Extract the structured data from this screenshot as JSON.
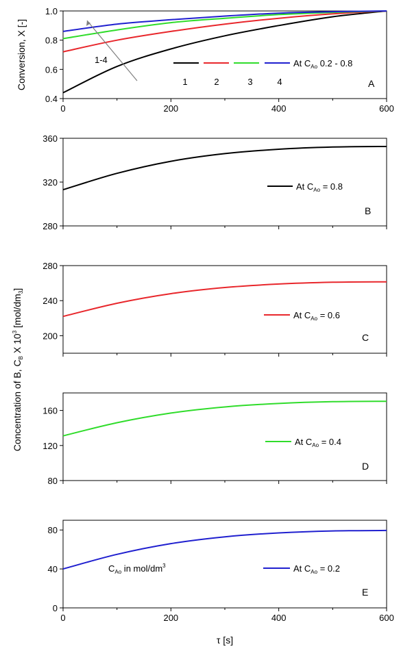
{
  "figure": {
    "ylabel_top": "Conversion, X [-]",
    "ylabel_bottom_main": "Concentration of B, C",
    "ylabel_bottom_sub": "B",
    "ylabel_bottom_tail": " X 10",
    "ylabel_bottom_sup": "3",
    "ylabel_bottom_unit": " [mol/dm",
    "ylabel_bottom_unit_sub": "3",
    "ylabel_bottom_end": "]",
    "xlabel": "τ [s]",
    "note_main": "C",
    "note_sub": "Ao",
    "note_tail": " in mol/dm",
    "note_sup": "3"
  },
  "chart_data": [
    {
      "panel": "A",
      "type": "line",
      "xlim": [
        0,
        600
      ],
      "ylim": [
        0.4,
        1.0
      ],
      "xticks": [
        "0",
        "200",
        "400",
        "600"
      ],
      "yticks": [
        "0.4",
        "0.6",
        "0.8",
        "1.0"
      ],
      "legend": {
        "prefix": "At C",
        "prefix_sub": "Ao",
        "suffix": " 0.2 - 0.8",
        "numbers": [
          "1",
          "2",
          "3",
          "4"
        ]
      },
      "arrow_label": "1-4",
      "series": [
        {
          "name": "1",
          "color": "#000000",
          "x": [
            0,
            100,
            200,
            300,
            400,
            500,
            600
          ],
          "y": [
            0.44,
            0.62,
            0.74,
            0.83,
            0.9,
            0.96,
            1.0
          ]
        },
        {
          "name": "2",
          "color": "#e8262b",
          "x": [
            0,
            100,
            200,
            300,
            400,
            500,
            600
          ],
          "y": [
            0.72,
            0.8,
            0.86,
            0.91,
            0.95,
            0.98,
            1.0
          ]
        },
        {
          "name": "3",
          "color": "#2fdc2a",
          "x": [
            0,
            100,
            200,
            300,
            400,
            500,
            600
          ],
          "y": [
            0.81,
            0.87,
            0.92,
            0.95,
            0.975,
            0.99,
            1.0
          ]
        },
        {
          "name": "4",
          "color": "#1f1fcf",
          "x": [
            0,
            100,
            200,
            300,
            400,
            500,
            600
          ],
          "y": [
            0.86,
            0.91,
            0.94,
            0.965,
            0.985,
            0.995,
            1.0
          ]
        }
      ]
    },
    {
      "panel": "B",
      "type": "line",
      "xlim": [
        0,
        600
      ],
      "ylim": [
        280,
        360
      ],
      "yticks": [
        "280",
        "320",
        "360"
      ],
      "legend": {
        "prefix": "At C",
        "prefix_sub": "Ao",
        "suffix": " = 0.8"
      },
      "series": [
        {
          "color": "#000000",
          "x": [
            0,
            100,
            200,
            300,
            400,
            500,
            600
          ],
          "y": [
            313,
            328,
            339,
            346,
            350,
            352,
            352.5
          ]
        }
      ]
    },
    {
      "panel": "C",
      "type": "line",
      "xlim": [
        0,
        600
      ],
      "ylim": [
        180,
        280
      ],
      "yticks": [
        "200",
        "240",
        "280"
      ],
      "legend": {
        "prefix": "At C",
        "prefix_sub": "Ao",
        "suffix": " = 0.6"
      },
      "series": [
        {
          "color": "#e8262b",
          "x": [
            0,
            100,
            200,
            300,
            400,
            500,
            600
          ],
          "y": [
            222,
            237,
            248,
            255,
            259,
            261,
            261.5
          ]
        }
      ]
    },
    {
      "panel": "D",
      "type": "line",
      "xlim": [
        0,
        600
      ],
      "ylim": [
        80,
        180
      ],
      "yticks": [
        "80",
        "120",
        "160"
      ],
      "legend": {
        "prefix": "At C",
        "prefix_sub": "Ao",
        "suffix": " = 0.4"
      },
      "series": [
        {
          "color": "#2fdc2a",
          "x": [
            0,
            100,
            200,
            300,
            400,
            500,
            600
          ],
          "y": [
            131,
            146,
            157,
            164,
            168,
            170,
            170.5
          ]
        }
      ]
    },
    {
      "panel": "E",
      "type": "line",
      "xlim": [
        0,
        600
      ],
      "ylim": [
        0,
        90
      ],
      "xticks": [
        "0",
        "200",
        "400",
        "600"
      ],
      "yticks": [
        "0",
        "40",
        "80"
      ],
      "legend": {
        "prefix": "At C",
        "prefix_sub": "Ao",
        "suffix": " = 0.2"
      },
      "series": [
        {
          "color": "#1f1fcf",
          "x": [
            0,
            100,
            200,
            300,
            400,
            500,
            600
          ],
          "y": [
            40,
            55,
            66,
            73,
            77,
            79,
            79.5
          ]
        }
      ]
    }
  ]
}
